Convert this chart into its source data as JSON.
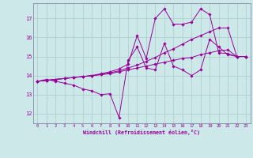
{
  "xlabel": "Windchill (Refroidissement éolien,°C)",
  "bg_color": "#cce8e8",
  "grid_color": "#aacccc",
  "line_color": "#990099",
  "xlim": [
    -0.5,
    23.5
  ],
  "ylim": [
    11.5,
    17.8
  ],
  "xticks": [
    0,
    1,
    2,
    3,
    4,
    5,
    6,
    7,
    8,
    9,
    10,
    11,
    12,
    13,
    14,
    15,
    16,
    17,
    18,
    19,
    20,
    21,
    22,
    23
  ],
  "yticks": [
    12,
    13,
    14,
    15,
    16,
    17
  ],
  "line1_x": [
    0,
    1,
    2,
    3,
    4,
    5,
    6,
    7,
    8,
    9,
    10,
    11,
    12,
    13,
    14,
    15,
    16,
    17,
    18,
    19,
    20,
    21,
    22,
    23
  ],
  "line1_y": [
    13.7,
    13.8,
    13.7,
    13.6,
    13.5,
    13.3,
    13.2,
    13.0,
    13.05,
    11.8,
    14.8,
    15.5,
    14.4,
    14.3,
    15.7,
    14.5,
    14.3,
    14.0,
    14.3,
    15.9,
    15.5,
    15.1,
    15.0,
    15.0
  ],
  "line2_x": [
    0,
    1,
    2,
    3,
    4,
    5,
    6,
    7,
    8,
    9,
    10,
    11,
    12,
    13,
    14,
    15,
    16,
    17,
    18,
    19,
    20,
    21,
    22,
    23
  ],
  "line2_y": [
    13.7,
    13.75,
    13.8,
    13.85,
    13.9,
    13.95,
    14.0,
    14.05,
    14.1,
    14.2,
    14.3,
    14.4,
    14.5,
    14.6,
    14.7,
    14.8,
    14.9,
    14.95,
    15.1,
    15.2,
    15.3,
    15.35,
    15.0,
    15.0
  ],
  "line3_x": [
    0,
    1,
    2,
    3,
    4,
    5,
    6,
    7,
    8,
    9,
    10,
    11,
    12,
    13,
    14,
    15,
    16,
    17,
    18,
    19,
    20,
    21,
    22,
    23
  ],
  "line3_y": [
    13.7,
    13.75,
    13.8,
    13.85,
    13.9,
    13.95,
    14.0,
    14.05,
    14.15,
    14.25,
    14.4,
    14.55,
    14.75,
    14.95,
    15.2,
    15.4,
    15.65,
    15.9,
    16.1,
    16.3,
    16.5,
    16.5,
    15.0,
    15.0
  ],
  "line4_x": [
    0,
    1,
    2,
    3,
    4,
    5,
    6,
    7,
    8,
    9,
    10,
    11,
    12,
    13,
    14,
    15,
    16,
    17,
    18,
    19,
    20,
    21,
    22,
    23
  ],
  "line4_y": [
    13.7,
    13.75,
    13.8,
    13.85,
    13.9,
    13.95,
    14.0,
    14.1,
    14.2,
    14.35,
    14.6,
    16.1,
    14.9,
    17.0,
    17.5,
    16.7,
    16.7,
    16.8,
    17.5,
    17.2,
    15.2,
    15.15,
    15.0,
    15.0
  ]
}
